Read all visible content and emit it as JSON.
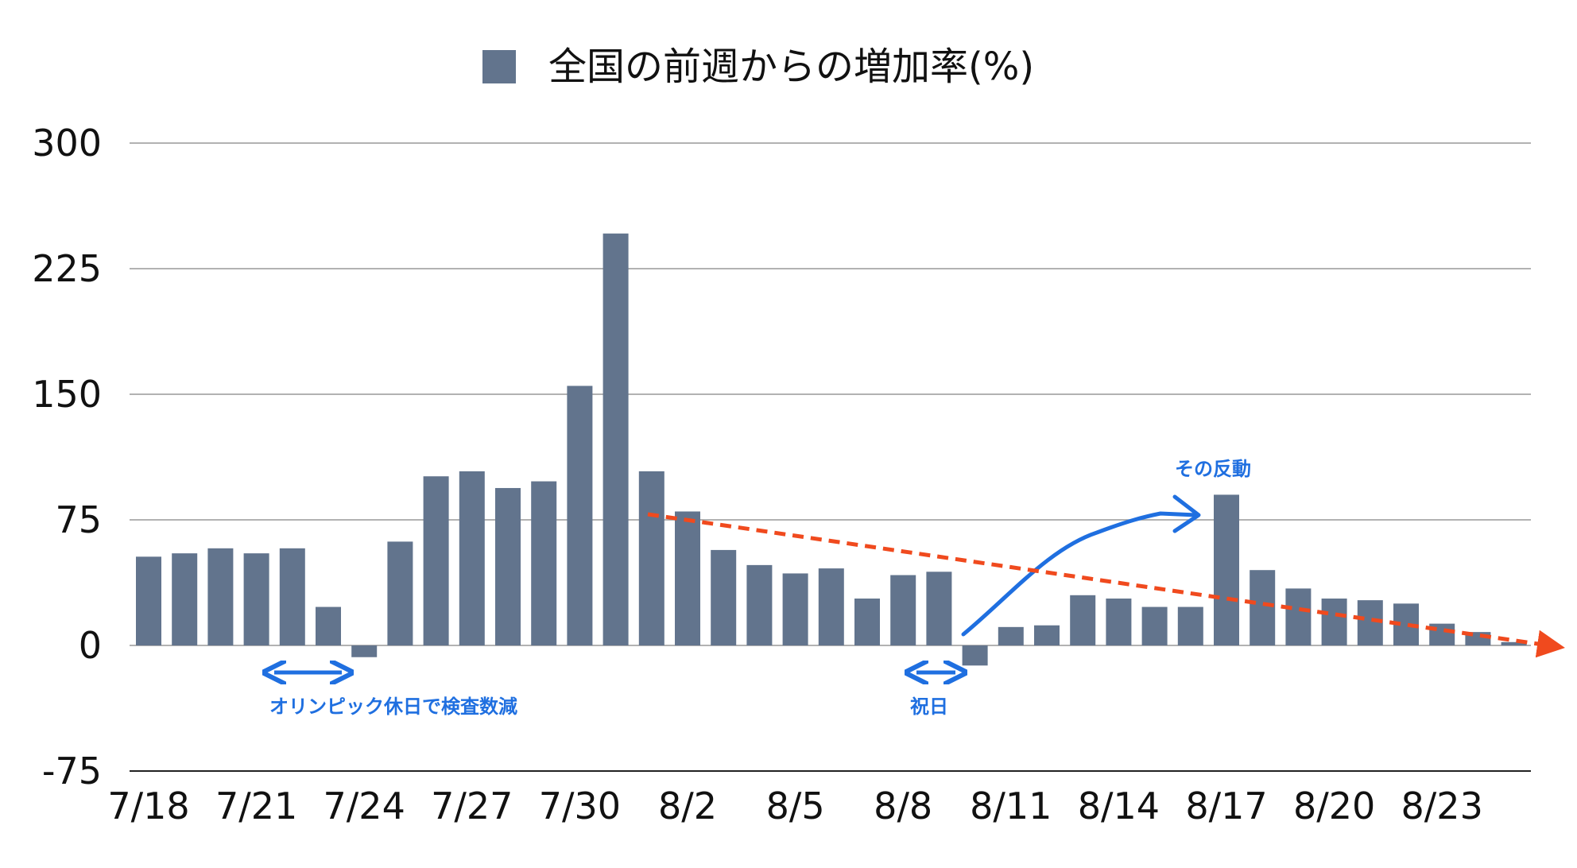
{
  "colors": {
    "bar": "#62748d",
    "grid": "#999999",
    "annotation_blue": "#1f6fe0",
    "trend_red": "#f04a1e"
  },
  "chart_data": {
    "type": "bar",
    "legend": {
      "label": "全国の前週からの増加率(%)",
      "position": "top"
    },
    "ylim": [
      -75,
      300
    ],
    "y_ticks": [
      "300",
      "225",
      "150",
      "75",
      "0",
      "-75"
    ],
    "x_tick_labels": [
      "7/18",
      "7/21",
      "7/24",
      "7/27",
      "7/30",
      "8/2",
      "8/5",
      "8/8",
      "8/11",
      "8/14",
      "8/17",
      "8/20",
      "8/23"
    ],
    "categories": [
      "7/18",
      "7/19",
      "7/20",
      "7/21",
      "7/22",
      "7/23",
      "7/24",
      "7/25",
      "7/26",
      "7/27",
      "7/28",
      "7/29",
      "7/30",
      "7/31",
      "8/1",
      "8/2",
      "8/3",
      "8/4",
      "8/5",
      "8/6",
      "8/7",
      "8/8",
      "8/9",
      "8/10",
      "8/11",
      "8/12",
      "8/13",
      "8/14",
      "8/15",
      "8/16",
      "8/17",
      "8/18",
      "8/19",
      "8/20",
      "8/21",
      "8/22",
      "8/23",
      "8/24",
      "8/25"
    ],
    "series": [
      {
        "values": [
          53,
          55,
          58,
          55,
          58,
          23,
          -7,
          62,
          101,
          104,
          94,
          98,
          155,
          246,
          104,
          80,
          57,
          48,
          43,
          46,
          28,
          42,
          44,
          -12,
          11,
          12,
          30,
          28,
          23,
          23,
          90,
          45,
          34,
          28,
          27,
          25,
          13,
          8,
          2
        ]
      }
    ],
    "grid": true,
    "annotations": {
      "olympic_holiday": "オリンピック休日で検査数減",
      "holiday": "祝日",
      "rebound": "その反動"
    }
  }
}
